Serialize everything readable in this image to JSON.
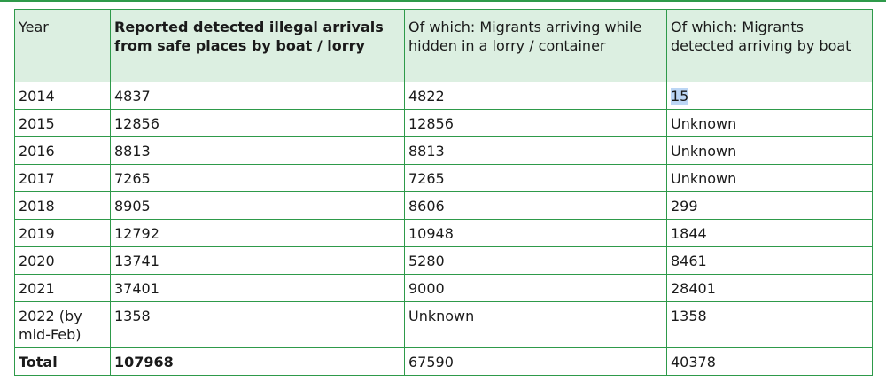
{
  "table": {
    "headers": [
      "Year",
      "Reported detected illegal arrivals from safe places by boat / lorry",
      "Of which: Migrants arriving while hidden in a lorry / container",
      "Of which: Migrants detected arriving by boat"
    ],
    "rows": [
      {
        "year": "2014",
        "total": "4837",
        "lorry": "4822",
        "boat": "15"
      },
      {
        "year": "2015",
        "total": "12856",
        "lorry": "12856",
        "boat": "Unknown"
      },
      {
        "year": "2016",
        "total": "8813",
        "lorry": "8813",
        "boat": "Unknown"
      },
      {
        "year": "2017",
        "total": "7265",
        "lorry": "7265",
        "boat": "Unknown"
      },
      {
        "year": "2018",
        "total": "8905",
        "lorry": "8606",
        "boat": "299"
      },
      {
        "year": "2019",
        "total": "12792",
        "lorry": "10948",
        "boat": "1844"
      },
      {
        "year": "2020",
        "total": "13741",
        "lorry": "5280",
        "boat": "8461"
      },
      {
        "year": "2021",
        "total": "37401",
        "lorry": "9000",
        "boat": "28401"
      },
      {
        "year": "2022 (by mid-Feb)",
        "total": "1358",
        "lorry": "Unknown",
        "boat": "1358"
      }
    ],
    "footer": {
      "year": "Total",
      "total": "107968",
      "lorry": "67590",
      "boat": "40378"
    }
  },
  "colors": {
    "border": "#2e9a4a",
    "header_bg": "#dcefe1",
    "selection": "#bcd6f5"
  }
}
